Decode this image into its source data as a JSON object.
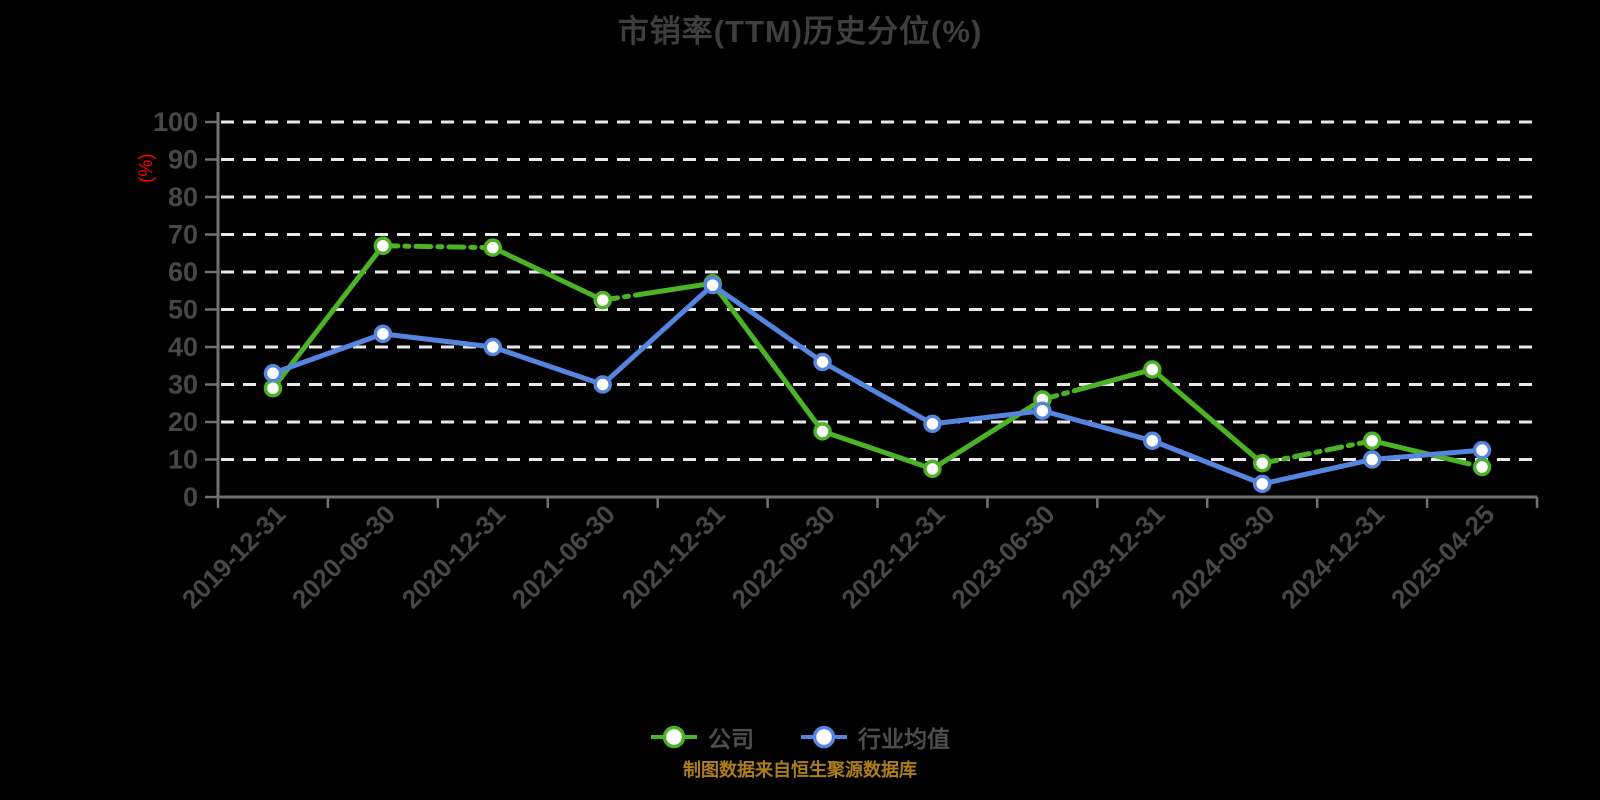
{
  "page": {
    "background_color": "#000000"
  },
  "chart": {
    "title": "市销率(TTM)历史分位(%)",
    "y_axis_unit": "(%)",
    "y_unit_color": "#ff0000",
    "source_note": "制图数据来自恒生聚源数据库",
    "source_note_color": "#ab7e1b"
  },
  "legend": {
    "position": "bottom-center",
    "items": [
      {
        "label": "公司",
        "color": "#4cb226",
        "marker": "white-circle-with-line"
      },
      {
        "label": "行业均值",
        "color": "#5585df",
        "marker": "white-circle-with-line"
      }
    ]
  },
  "chart_data": {
    "type": "line",
    "title": "市销率(TTM)历史分位(%)",
    "xlabel": "",
    "ylabel": "(%)",
    "ylim": [
      0,
      100
    ],
    "y_tick_step": 10,
    "grid": "horizontal-white-dashed",
    "legend_position": "bottom",
    "source_note": "制图数据来自恒生聚源数据库",
    "categories": [
      "2019-12-31",
      "2020-06-30",
      "2020-12-31",
      "2021-06-30",
      "2021-12-31",
      "2022-06-30",
      "2022-12-31",
      "2023-06-30",
      "2023-12-31",
      "2024-06-30",
      "2024-12-31",
      "2025-04-25"
    ],
    "series": [
      {
        "name": "公司",
        "color": "#4cb226",
        "marker": "circle-white-fill",
        "values": [
          29,
          67,
          66.5,
          52.5,
          57,
          17.5,
          7.5,
          26,
          34,
          9,
          15,
          8
        ],
        "dashed_segments": [
          [
            1,
            0,
            1
          ],
          [
            3,
            0,
            0.35
          ],
          [
            6,
            0.8,
            1
          ],
          [
            7,
            0,
            0.3
          ],
          [
            8,
            0.85,
            1
          ],
          [
            9,
            0,
            1
          ],
          [
            10,
            0.75,
            1
          ]
        ]
      },
      {
        "name": "行业均值",
        "color": "#5585df",
        "marker": "circle-white-fill",
        "values": [
          33,
          43.5,
          40,
          30,
          56.5,
          36,
          19.5,
          23,
          15,
          3.5,
          10,
          12.5
        ],
        "dashed_segments": []
      }
    ]
  }
}
